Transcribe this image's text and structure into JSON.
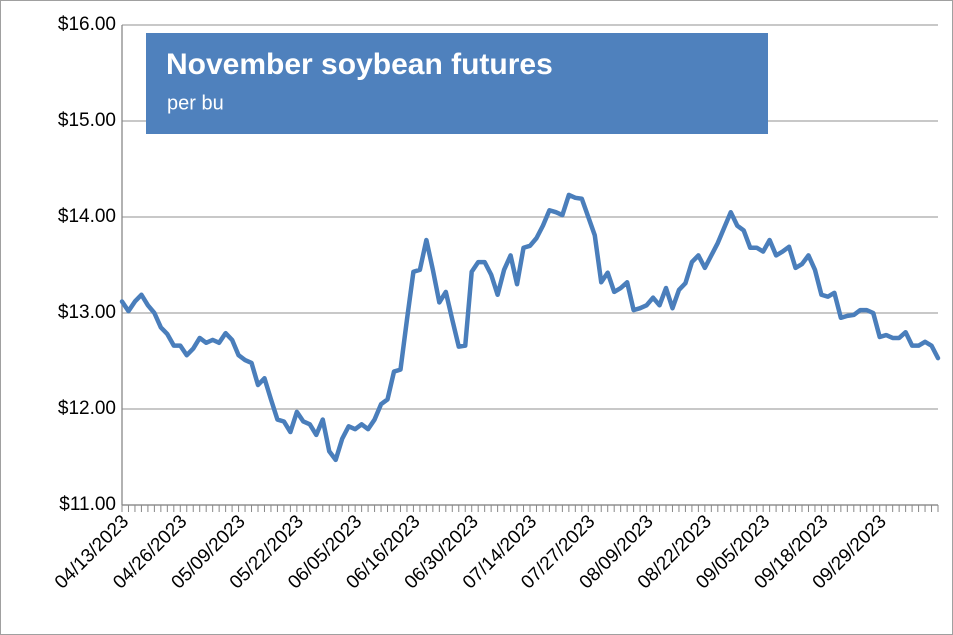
{
  "chart_data": {
    "type": "line",
    "title": "November soybean futures",
    "subtitle": "per bu",
    "categories": [
      "04/13/2023",
      null,
      null,
      null,
      null,
      null,
      null,
      null,
      null,
      "04/26/2023",
      null,
      null,
      null,
      null,
      null,
      null,
      null,
      null,
      "05/09/2023",
      null,
      null,
      null,
      null,
      null,
      null,
      null,
      null,
      "05/22/2023",
      null,
      null,
      null,
      null,
      null,
      null,
      null,
      null,
      "06/05/2023",
      null,
      null,
      null,
      null,
      null,
      null,
      null,
      null,
      "06/16/2023",
      null,
      null,
      null,
      null,
      null,
      null,
      null,
      null,
      "06/30/2023",
      null,
      null,
      null,
      null,
      null,
      null,
      null,
      null,
      "07/14/2023",
      null,
      null,
      null,
      null,
      null,
      null,
      null,
      null,
      "07/27/2023",
      null,
      null,
      null,
      null,
      null,
      null,
      null,
      null,
      "08/09/2023",
      null,
      null,
      null,
      null,
      null,
      null,
      null,
      null,
      "08/22/2023",
      null,
      null,
      null,
      null,
      null,
      null,
      null,
      null,
      "09/05/2023",
      null,
      null,
      null,
      null,
      null,
      null,
      null,
      null,
      "09/18/2023",
      null,
      null,
      null,
      null,
      null,
      null,
      null,
      null,
      "09/29/2023",
      null,
      null,
      null,
      null,
      null,
      null,
      null,
      null,
      null
    ],
    "values": [
      13.12,
      13.02,
      13.12,
      13.19,
      13.08,
      13.0,
      12.85,
      12.78,
      12.66,
      12.66,
      12.56,
      12.63,
      12.74,
      12.69,
      12.72,
      12.69,
      12.79,
      12.72,
      12.56,
      12.51,
      12.48,
      12.25,
      12.32,
      12.1,
      11.89,
      11.87,
      11.76,
      11.97,
      11.87,
      11.84,
      11.73,
      11.89,
      11.56,
      11.47,
      11.69,
      11.82,
      11.79,
      11.84,
      11.79,
      11.89,
      12.05,
      12.1,
      12.39,
      12.41,
      12.93,
      13.43,
      13.45,
      13.76,
      13.45,
      13.11,
      13.22,
      12.93,
      12.65,
      12.66,
      13.43,
      13.53,
      13.53,
      13.4,
      13.19,
      13.45,
      13.6,
      13.3,
      13.68,
      13.7,
      13.78,
      13.91,
      14.07,
      14.05,
      14.02,
      14.23,
      14.2,
      14.19,
      14.0,
      13.81,
      13.32,
      13.42,
      13.22,
      13.26,
      13.32,
      13.03,
      13.05,
      13.08,
      13.16,
      13.08,
      13.26,
      13.05,
      13.24,
      13.31,
      13.53,
      13.6,
      13.47,
      13.6,
      13.73,
      13.89,
      14.05,
      13.91,
      13.86,
      13.68,
      13.68,
      13.64,
      13.76,
      13.6,
      13.64,
      13.69,
      13.47,
      13.51,
      13.6,
      13.45,
      13.19,
      13.17,
      13.21,
      12.95,
      12.97,
      12.98,
      13.03,
      13.03,
      13.0,
      12.75,
      12.77,
      12.74,
      12.74,
      12.8,
      12.66,
      12.66,
      12.7,
      12.66,
      12.53
    ],
    "color": "#4a7ebb",
    "ylim": [
      11,
      16
    ],
    "yticks": [
      {
        "value": 11,
        "label": "$11.00"
      },
      {
        "value": 12,
        "label": "$12.00"
      },
      {
        "value": 13,
        "label": "$13.00"
      },
      {
        "value": 14,
        "label": "$14.00"
      },
      {
        "value": 15,
        "label": "$15.00"
      },
      {
        "value": 16,
        "label": "$16.00"
      }
    ],
    "grid": true
  }
}
